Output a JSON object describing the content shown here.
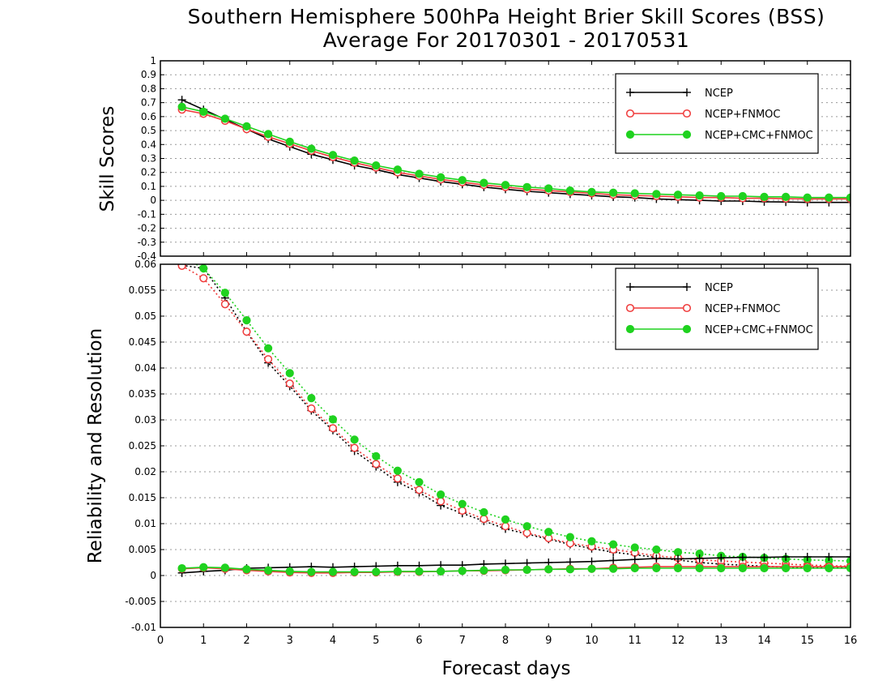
{
  "title": {
    "line1": "Southern Hemisphere 500hPa Height Brier Skill Scores (BSS)",
    "line2": "Average For 20170301 - 20170531"
  },
  "xlabel": "Forecast days",
  "colors": {
    "NCEP": "#000000",
    "NCEP+FNMOC": "#ef3b3b",
    "NCEP+CMC+FNMOC": "#1fd21f"
  },
  "chart_data": [
    {
      "type": "line",
      "ylabel": "Skill Scores",
      "xlim": [
        0,
        16
      ],
      "ylim": [
        -0.4,
        1
      ],
      "yticks": [
        -0.4,
        -0.3,
        -0.2,
        -0.1,
        0,
        0.1,
        0.2,
        0.3,
        0.4,
        0.5,
        0.6,
        0.7,
        0.8,
        0.9,
        1
      ],
      "xticks": [
        0,
        1,
        2,
        3,
        4,
        5,
        6,
        7,
        8,
        9,
        10,
        11,
        12,
        13,
        14,
        15,
        16
      ],
      "grid": true,
      "legend": "top-right",
      "x": [
        0.5,
        1,
        1.5,
        2,
        2.5,
        3,
        3.5,
        4,
        4.5,
        5,
        5.5,
        6,
        6.5,
        7,
        7.5,
        8,
        8.5,
        9,
        9.5,
        10,
        10.5,
        11,
        11.5,
        12,
        12.5,
        13,
        13.5,
        14,
        14.5,
        15,
        15.5,
        16
      ],
      "series": [
        {
          "name": "NCEP",
          "marker": "plus",
          "style": "solid",
          "values": [
            0.72,
            0.65,
            0.58,
            0.51,
            0.44,
            0.385,
            0.33,
            0.29,
            0.25,
            0.22,
            0.185,
            0.16,
            0.135,
            0.115,
            0.095,
            0.08,
            0.065,
            0.055,
            0.045,
            0.035,
            0.025,
            0.02,
            0.01,
            0.005,
            0.0,
            -0.005,
            -0.005,
            -0.01,
            -0.012,
            -0.015,
            -0.015,
            -0.015
          ]
        },
        {
          "name": "NCEP+FNMOC",
          "marker": "circle",
          "style": "solid",
          "values": [
            0.65,
            0.62,
            0.57,
            0.51,
            0.455,
            0.405,
            0.355,
            0.31,
            0.27,
            0.235,
            0.2,
            0.175,
            0.15,
            0.13,
            0.11,
            0.095,
            0.08,
            0.07,
            0.06,
            0.05,
            0.04,
            0.035,
            0.03,
            0.025,
            0.02,
            0.02,
            0.015,
            0.015,
            0.012,
            0.01,
            0.01,
            0.01
          ]
        },
        {
          "name": "NCEP+CMC+FNMOC",
          "marker": "dot",
          "style": "solid",
          "values": [
            0.67,
            0.635,
            0.585,
            0.53,
            0.475,
            0.42,
            0.37,
            0.325,
            0.285,
            0.25,
            0.22,
            0.19,
            0.165,
            0.145,
            0.125,
            0.11,
            0.095,
            0.085,
            0.07,
            0.06,
            0.055,
            0.05,
            0.045,
            0.04,
            0.035,
            0.03,
            0.03,
            0.025,
            0.025,
            0.02,
            0.02,
            0.02
          ]
        }
      ]
    },
    {
      "type": "line",
      "ylabel": "Reliability and Resolution",
      "xlim": [
        0,
        16
      ],
      "ylim": [
        -0.01,
        0.06
      ],
      "yticks": [
        -0.01,
        -0.005,
        0,
        0.005,
        0.01,
        0.015,
        0.02,
        0.025,
        0.03,
        0.035,
        0.04,
        0.045,
        0.05,
        0.055,
        0.06
      ],
      "xticks": [
        0,
        1,
        2,
        3,
        4,
        5,
        6,
        7,
        8,
        9,
        10,
        11,
        12,
        13,
        14,
        15,
        16
      ],
      "grid": true,
      "legend": "top-right",
      "x": [
        0.5,
        1,
        1.5,
        2,
        2.5,
        3,
        3.5,
        4,
        4.5,
        5,
        5.5,
        6,
        6.5,
        7,
        7.5,
        8,
        8.5,
        9,
        9.5,
        10,
        10.5,
        11,
        11.5,
        12,
        12.5,
        13,
        13.5,
        14,
        14.5,
        15,
        15.5,
        16
      ],
      "series": [
        {
          "name": "NCEP",
          "role": "resolution",
          "marker": "plus",
          "style": "dotted",
          "values": [
            0.0598,
            0.0592,
            0.0535,
            0.047,
            0.041,
            0.0365,
            0.0318,
            0.028,
            0.024,
            0.021,
            0.018,
            0.016,
            0.0135,
            0.012,
            0.0105,
            0.009,
            0.008,
            0.007,
            0.006,
            0.0052,
            0.0045,
            0.004,
            0.0035,
            0.003,
            0.0025,
            0.0022,
            0.002,
            0.0018,
            0.0016,
            0.0015,
            0.0015,
            0.0015
          ]
        },
        {
          "name": "NCEP+FNMOC",
          "role": "resolution",
          "marker": "circle",
          "style": "dotted",
          "values": [
            0.0597,
            0.0573,
            0.0523,
            0.047,
            0.0417,
            0.037,
            0.0322,
            0.0284,
            0.0246,
            0.0215,
            0.0187,
            0.0165,
            0.0143,
            0.0125,
            0.0109,
            0.0095,
            0.0082,
            0.0072,
            0.0062,
            0.0056,
            0.005,
            0.0044,
            0.0038,
            0.0034,
            0.003,
            0.0028,
            0.0026,
            0.0024,
            0.0022,
            0.002,
            0.0019,
            0.0018
          ]
        },
        {
          "name": "NCEP+CMC+FNMOC",
          "role": "resolution",
          "marker": "dot",
          "style": "dotted",
          "values": [
            0.0615,
            0.0592,
            0.0545,
            0.0492,
            0.0438,
            0.039,
            0.0342,
            0.0301,
            0.0262,
            0.023,
            0.0202,
            0.018,
            0.0156,
            0.0138,
            0.0122,
            0.0108,
            0.0095,
            0.0084,
            0.0074,
            0.0066,
            0.006,
            0.0054,
            0.005,
            0.0045,
            0.0042,
            0.0038,
            0.0036,
            0.0034,
            0.0032,
            0.003,
            0.0029,
            0.0028
          ]
        },
        {
          "name": "NCEP",
          "role": "reliability",
          "marker": "plus",
          "style": "solid",
          "values": [
            0.0005,
            0.0008,
            0.001,
            0.0014,
            0.0015,
            0.0016,
            0.0017,
            0.0016,
            0.0017,
            0.0018,
            0.0019,
            0.0019,
            0.002,
            0.002,
            0.0022,
            0.0023,
            0.0024,
            0.0025,
            0.0026,
            0.0027,
            0.0029,
            0.0031,
            0.0033,
            0.0032,
            0.0033,
            0.0034,
            0.0035,
            0.0035,
            0.0036,
            0.0036,
            0.0036,
            0.0036
          ]
        },
        {
          "name": "NCEP+FNMOC",
          "role": "reliability",
          "marker": "circle",
          "style": "solid",
          "values": [
            0.0013,
            0.0015,
            0.0013,
            0.001,
            0.0008,
            0.0006,
            0.0005,
            0.0005,
            0.0006,
            0.0006,
            0.0007,
            0.0007,
            0.0008,
            0.0009,
            0.0009,
            0.001,
            0.0011,
            0.0012,
            0.0013,
            0.0013,
            0.0015,
            0.0016,
            0.0017,
            0.0017,
            0.0017,
            0.0017,
            0.0017,
            0.0017,
            0.0017,
            0.0017,
            0.0017,
            0.0017
          ]
        },
        {
          "name": "NCEP+CMC+FNMOC",
          "role": "reliability",
          "marker": "dot",
          "style": "solid",
          "values": [
            0.0014,
            0.0016,
            0.0015,
            0.0012,
            0.001,
            0.0008,
            0.0007,
            0.0007,
            0.0007,
            0.0007,
            0.0008,
            0.0008,
            0.0008,
            0.0009,
            0.001,
            0.0011,
            0.0011,
            0.0012,
            0.0012,
            0.0013,
            0.0013,
            0.0014,
            0.0014,
            0.0014,
            0.0014,
            0.0014,
            0.0014,
            0.0014,
            0.0014,
            0.0014,
            0.0014,
            0.0014
          ]
        }
      ]
    }
  ]
}
